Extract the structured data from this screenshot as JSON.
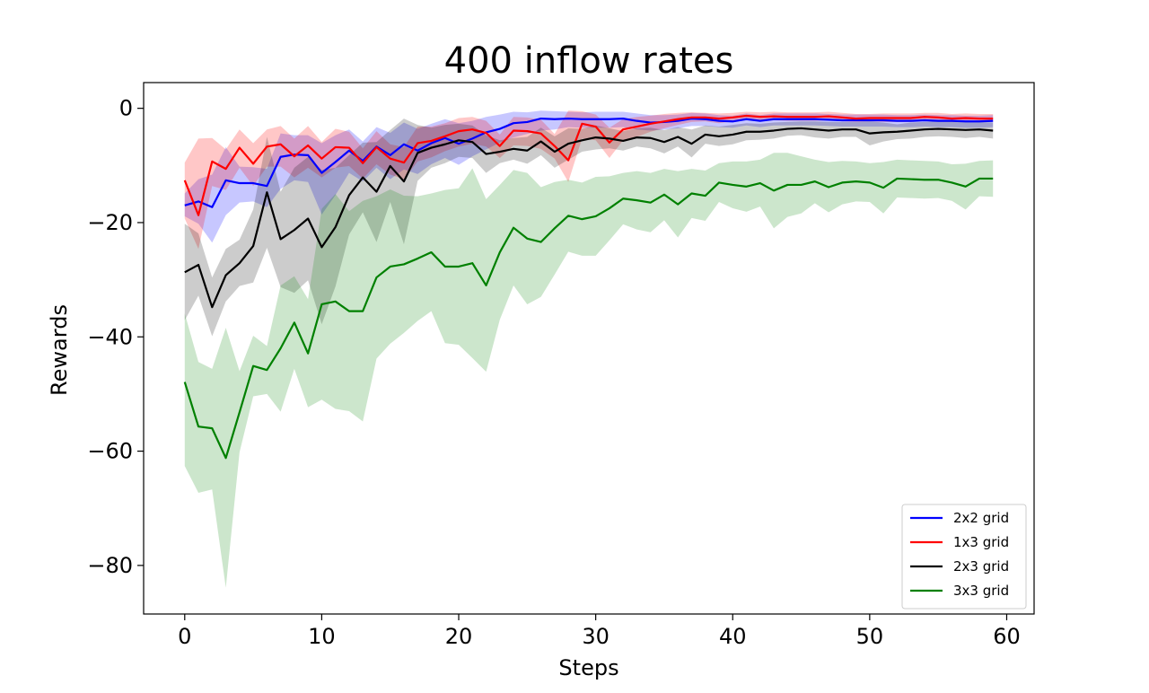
{
  "chart_data": {
    "type": "line",
    "title": "400 inflow rates",
    "xlabel": "Steps",
    "ylabel": "Rewards",
    "xlim": [
      -3,
      62
    ],
    "ylim": [
      -88.5,
      4.5
    ],
    "xticks": [
      0,
      10,
      20,
      30,
      40,
      50,
      60
    ],
    "yticks": [
      0,
      -20,
      -40,
      -60,
      -80
    ],
    "grid": false,
    "legend_position": "lower-right",
    "x": [
      0,
      1,
      2,
      3,
      4,
      5,
      6,
      7,
      8,
      9,
      10,
      11,
      12,
      13,
      14,
      15,
      16,
      17,
      18,
      19,
      20,
      21,
      22,
      23,
      24,
      25,
      26,
      27,
      28,
      29,
      30,
      31,
      32,
      33,
      34,
      35,
      36,
      37,
      38,
      39,
      40,
      41,
      42,
      43,
      44,
      45,
      46,
      47,
      48,
      49,
      50,
      51,
      52,
      53,
      54,
      55,
      56,
      57,
      58,
      59
    ],
    "series": [
      {
        "name": "2x2 grid",
        "color": "#0000ff",
        "band_color": "#0000ff",
        "band_opacity": 0.22,
        "values": [
          -17,
          -16.3,
          -17.3,
          -12.6,
          -13.1,
          -13.1,
          -13.6,
          -8.5,
          -8.1,
          -8.2,
          -11.3,
          -9.4,
          -7.4,
          -9.2,
          -6.7,
          -8.2,
          -6.3,
          -7.4,
          -6.1,
          -5.2,
          -6.2,
          -5.3,
          -4.2,
          -3.6,
          -2.6,
          -2.4,
          -1.8,
          -1.9,
          -1.8,
          -1.9,
          -1.9,
          -1.9,
          -1.8,
          -2.2,
          -2.5,
          -2.4,
          -2.2,
          -1.8,
          -1.9,
          -2.2,
          -2.3,
          -1.9,
          -2.2,
          -1.9,
          -1.9,
          -1.9,
          -1.9,
          -2,
          -2.1,
          -2.1,
          -2.1,
          -2.1,
          -2.2,
          -2.2,
          -2.1,
          -2.2,
          -2.2,
          -2.3,
          -2.3,
          -2.2
        ],
        "lower": [
          -18.9,
          -20.2,
          -23.5,
          -18.7,
          -16.5,
          -16.3,
          -17.3,
          -14.1,
          -12.6,
          -12.9,
          -18.6,
          -15.2,
          -11.3,
          -12.8,
          -10.4,
          -12.4,
          -10.7,
          -11.5,
          -9.8,
          -8.7,
          -9.9,
          -8.4,
          -7.2,
          -6,
          -5.1,
          -4.5,
          -3.9,
          -3.7,
          -3.3,
          -3.4,
          -3.4,
          -3.4,
          -3.3,
          -3.7,
          -3.9,
          -3.7,
          -3.5,
          -3.1,
          -3.1,
          -3.3,
          -3.4,
          -3,
          -3.3,
          -3,
          -3,
          -3,
          -3,
          -3.1,
          -3.2,
          -3.2,
          -3.2,
          -3.2,
          -3.3,
          -3.3,
          -3.2,
          -3.3,
          -3.3,
          -3.4,
          -3.4,
          -3.3
        ],
        "upper": [
          -14.9,
          -12.4,
          -11.6,
          -6.8,
          -10.2,
          -10.3,
          -10.6,
          -4.4,
          -4.7,
          -4.7,
          -6.1,
          -4.7,
          -3.7,
          -5.8,
          -3.3,
          -4.3,
          -2.5,
          -3.6,
          -2.7,
          -1.9,
          -2.6,
          -2.2,
          -1.5,
          -1.1,
          -0.6,
          -0.7,
          -0.4,
          -0.5,
          -0.6,
          -0.7,
          -0.6,
          -0.6,
          -0.6,
          -0.9,
          -1.2,
          -1.2,
          -1.1,
          -0.8,
          -0.9,
          -1.2,
          -1.3,
          -0.9,
          -1.2,
          -0.9,
          -0.9,
          -0.9,
          -0.9,
          -1,
          -1.1,
          -1.1,
          -1.1,
          -1.1,
          -1.2,
          -1.2,
          -1.1,
          -1.2,
          -1.2,
          -1.3,
          -1.3,
          -1.2
        ]
      },
      {
        "name": "1x3 grid",
        "color": "#ff0000",
        "band_color": "#ff0000",
        "band_opacity": 0.22,
        "values": [
          -12.6,
          -18.7,
          -9.3,
          -10.6,
          -6.9,
          -9.7,
          -6.7,
          -6.3,
          -8.4,
          -6.5,
          -8.8,
          -6.8,
          -6.9,
          -9.6,
          -6.8,
          -8.8,
          -9.5,
          -6.1,
          -5.7,
          -4.9,
          -4,
          -3.7,
          -4.3,
          -6.6,
          -3.9,
          -4,
          -4.4,
          -6.6,
          -9.1,
          -2.7,
          -3.2,
          -6,
          -3.7,
          -3.2,
          -2.7,
          -2.3,
          -1.9,
          -1.6,
          -1.6,
          -1.8,
          -1.6,
          -1.3,
          -1.5,
          -1.4,
          -1.5,
          -1.5,
          -1.5,
          -1.4,
          -1.6,
          -1.8,
          -1.7,
          -1.7,
          -1.7,
          -1.7,
          -1.5,
          -1.6,
          -1.8,
          -1.7,
          -1.8,
          -1.8
        ],
        "lower": [
          -19.3,
          -24.6,
          -13.6,
          -14.3,
          -10.4,
          -13.6,
          -10.2,
          -10.2,
          -12.1,
          -10.4,
          -12.1,
          -10.4,
          -10.1,
          -12.3,
          -9.8,
          -11.6,
          -12.4,
          -9.3,
          -8.6,
          -7.5,
          -6.7,
          -6.2,
          -6.7,
          -8.7,
          -6.5,
          -6.6,
          -7.1,
          -8.8,
          -12.9,
          -5.3,
          -5.6,
          -8.7,
          -5.6,
          -5,
          -4.1,
          -3.5,
          -2.9,
          -2.4,
          -2.3,
          -2.6,
          -2.3,
          -2,
          -2.3,
          -2.1,
          -2.2,
          -2.2,
          -2.2,
          -2.1,
          -2.3,
          -2.4,
          -2.3,
          -2.4,
          -2.4,
          -2.4,
          -2.2,
          -2.3,
          -2.4,
          -2.4,
          -2.4,
          -2.4
        ],
        "upper": [
          -9.5,
          -5.3,
          -5.2,
          -7.2,
          -3.7,
          -6.1,
          -3.7,
          -3.1,
          -5.3,
          -3.1,
          -5.9,
          -3.6,
          -4.1,
          -7,
          -4,
          -6.3,
          -6.8,
          -3.2,
          -3.2,
          -2.6,
          -1.7,
          -1.5,
          -2.2,
          -4.6,
          -1.5,
          -1.6,
          -2,
          -4.5,
          -0.4,
          -0.5,
          -1.1,
          -3.4,
          -1.9,
          -1.5,
          -1.3,
          -1,
          -0.8,
          -0.7,
          -0.8,
          -0.9,
          -0.8,
          -0.6,
          -0.7,
          -0.6,
          -0.7,
          -0.7,
          -0.7,
          -0.6,
          -0.8,
          -1,
          -1,
          -0.9,
          -0.9,
          -0.9,
          -0.8,
          -0.8,
          -1,
          -0.9,
          -1,
          -1
        ]
      },
      {
        "name": "2x3 grid",
        "color": "#000000",
        "band_color": "#000000",
        "band_opacity": 0.2,
        "values": [
          -28.7,
          -27.4,
          -34.8,
          -29.2,
          -27.1,
          -24.1,
          -14.7,
          -22.9,
          -21.3,
          -19.3,
          -24.3,
          -20.8,
          -15.2,
          -12.1,
          -14.6,
          -10.1,
          -12.8,
          -7.8,
          -6.9,
          -6.3,
          -5.6,
          -5.9,
          -8,
          -7.6,
          -7.1,
          -7.4,
          -5.8,
          -7.6,
          -6.2,
          -5.6,
          -5.1,
          -5.3,
          -5.7,
          -5.1,
          -5.2,
          -5.9,
          -5,
          -6.2,
          -4.6,
          -4.9,
          -4.6,
          -4.1,
          -4.1,
          -3.9,
          -3.6,
          -3.5,
          -3.7,
          -3.9,
          -3.7,
          -3.7,
          -4.4,
          -4.2,
          -4.1,
          -3.9,
          -3.7,
          -3.6,
          -3.7,
          -3.8,
          -3.7,
          -3.9
        ],
        "lower": [
          -37.1,
          -32.8,
          -39.9,
          -33.8,
          -31.1,
          -30.5,
          -24.4,
          -31.3,
          -32.3,
          -30.1,
          -37.8,
          -31.2,
          -22.1,
          -18.2,
          -23.4,
          -16.4,
          -23.8,
          -12.7,
          -10.4,
          -9.6,
          -8.5,
          -8.7,
          -11.3,
          -9.6,
          -9,
          -9.7,
          -8.2,
          -10.4,
          -9,
          -7.6,
          -7.2,
          -7,
          -7.4,
          -6.7,
          -7,
          -7.9,
          -6.7,
          -8.6,
          -6.2,
          -6.6,
          -6.3,
          -5.6,
          -5.5,
          -5.3,
          -4.8,
          -4.7,
          -5.1,
          -5.3,
          -5,
          -5,
          -6.5,
          -5.8,
          -5.4,
          -5.3,
          -5,
          -4.9,
          -5,
          -5.2,
          -5,
          -5.3
        ],
        "upper": [
          -20.2,
          -21.9,
          -29.6,
          -24.6,
          -23,
          -17.7,
          -5,
          -14.6,
          -10.4,
          -8.5,
          -10.8,
          -10.4,
          -8.2,
          -6,
          -5.9,
          -3.8,
          -1.8,
          -2.9,
          -3.4,
          -2.9,
          -2.7,
          -3,
          -4.7,
          -5.6,
          -5.2,
          -5,
          -3.4,
          -4.9,
          -3.5,
          -3.6,
          -3,
          -3.5,
          -4,
          -3.5,
          -3.4,
          -3.8,
          -3.3,
          -3.7,
          -3,
          -3.2,
          -2.9,
          -2.6,
          -2.7,
          -2.5,
          -2.4,
          -2.3,
          -2.3,
          -2.4,
          -2.4,
          -2.4,
          -2.3,
          -2.5,
          -2.8,
          -2.5,
          -2.4,
          -2.3,
          -2.3,
          -2.4,
          -2.4,
          -2.5
        ]
      },
      {
        "name": "3x3 grid",
        "color": "#008000",
        "band_color": "#008000",
        "band_opacity": 0.2,
        "values": [
          -47.9,
          -55.7,
          -56,
          -61.2,
          -53.2,
          -45.1,
          -45.8,
          -42,
          -37.5,
          -42.9,
          -34.3,
          -33.8,
          -35.5,
          -35.5,
          -29.6,
          -27.7,
          -27.3,
          -26.3,
          -25.2,
          -27.7,
          -27.7,
          -27.1,
          -31,
          -25.2,
          -20.9,
          -22.8,
          -23.4,
          -21,
          -18.8,
          -19.4,
          -18.9,
          -17.5,
          -15.8,
          -16.1,
          -16.5,
          -15.1,
          -16.8,
          -14.9,
          -15.3,
          -13,
          -13.4,
          -13.7,
          -13.1,
          -14.4,
          -13.4,
          -13.4,
          -12.8,
          -13.8,
          -13,
          -12.8,
          -13,
          -13.9,
          -12.3,
          -12.4,
          -12.5,
          -12.5,
          -13,
          -13.7,
          -12.3,
          -12.3
        ],
        "lower": [
          -62.6,
          -67.3,
          -66.7,
          -83.9,
          -60.2,
          -50.4,
          -50,
          -53.1,
          -45.6,
          -52.3,
          -51,
          -52.6,
          -53,
          -54.8,
          -43.8,
          -41.2,
          -39.3,
          -37.2,
          -35.5,
          -41.1,
          -41.4,
          -43.7,
          -46.1,
          -37,
          -31,
          -34.3,
          -33,
          -29.1,
          -25.1,
          -25.8,
          -25.8,
          -23.1,
          -20.3,
          -21.2,
          -21.7,
          -19.6,
          -22.6,
          -19.2,
          -19.7,
          -16.4,
          -17.5,
          -18.1,
          -17.2,
          -21,
          -19,
          -18.4,
          -16.6,
          -18.2,
          -16.8,
          -16.3,
          -16.4,
          -18.4,
          -15.6,
          -15.7,
          -15.8,
          -15.7,
          -16.2,
          -17.7,
          -15.4,
          -15.5
        ],
        "upper": [
          -35.9,
          -44.4,
          -45.6,
          -38.4,
          -46,
          -39.8,
          -41.6,
          -31,
          -29.4,
          -33.4,
          -17.6,
          -15,
          -18,
          -16.2,
          -15.4,
          -14.2,
          -15.3,
          -15.4,
          -14.9,
          -14.3,
          -14,
          -10.5,
          -15.9,
          -13.4,
          -10.8,
          -11.3,
          -13.8,
          -12.9,
          -12.5,
          -13,
          -12,
          -11.9,
          -11.3,
          -11,
          -11.3,
          -10.6,
          -11,
          -10.6,
          -10.9,
          -9.6,
          -9.3,
          -9.3,
          -9,
          -7.8,
          -7.8,
          -8.4,
          -9,
          -9.4,
          -9.2,
          -9.3,
          -9.6,
          -9.4,
          -9,
          -9.1,
          -9.2,
          -9.3,
          -9.8,
          -9.7,
          -9.2,
          -9.1
        ]
      }
    ]
  }
}
